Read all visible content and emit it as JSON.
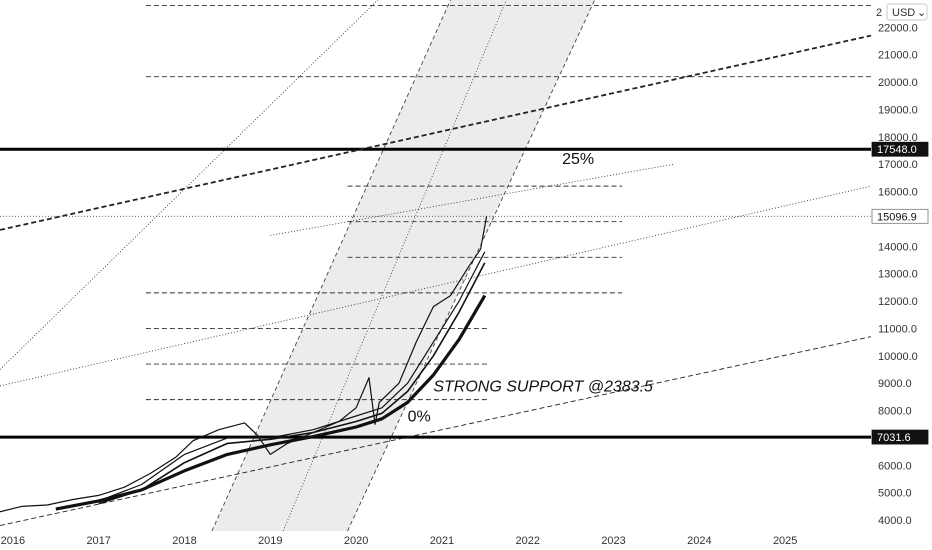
{
  "currency_label": "USD",
  "currency_menu_icon": "chevron-down-icon",
  "top_partial_tick": "2",
  "chart_data": {
    "type": "line",
    "price_axis": {
      "ticks": [
        "4000.0",
        "5000.0",
        "6000.0",
        "7000.0",
        "8000.0",
        "9000.0",
        "10000.0",
        "11000.0",
        "12000.0",
        "13000.0",
        "14000.0",
        "15000.0",
        "16000.0",
        "17000.0",
        "18000.0",
        "19000.0",
        "20000.0",
        "21000.0",
        "22000.0"
      ],
      "ylim": [
        3600,
        23000
      ]
    },
    "time_axis": {
      "ticks": [
        "2016",
        "2017",
        "2018",
        "2019",
        "2020",
        "2021",
        "2022",
        "2023",
        "2024",
        "2025"
      ],
      "xlim": [
        2015.85,
        2026.0
      ]
    },
    "price_badges": [
      {
        "label": "17548.0",
        "value": 17548.0,
        "style": "dark"
      },
      {
        "label": "15096.9",
        "value": 15096.9,
        "style": "light"
      },
      {
        "label": "7031.6",
        "value": 7031.6,
        "style": "dark"
      }
    ],
    "horizontal_levels": [
      {
        "value": 17548.0,
        "style": "thick"
      },
      {
        "value": 7031.6,
        "style": "thick"
      },
      {
        "value": 15096.9,
        "style": "dotted"
      }
    ],
    "fib_levels": [
      {
        "value": 22800,
        "x0": 2017.55,
        "x1": 2026.0
      },
      {
        "value": 20200,
        "x0": 2017.55,
        "x1": 2026.0
      },
      {
        "value": 16200,
        "x0": 2019.9,
        "x1": 2023.1
      },
      {
        "value": 14900,
        "x0": 2019.9,
        "x1": 2023.1
      },
      {
        "value": 13600,
        "x0": 2019.9,
        "x1": 2023.1
      },
      {
        "value": 12300,
        "x0": 2017.55,
        "x1": 2023.1
      },
      {
        "value": 11000,
        "x0": 2017.55,
        "x1": 2021.55
      },
      {
        "value": 9700,
        "x0": 2017.55,
        "x1": 2021.55
      },
      {
        "value": 8400,
        "x0": 2017.55,
        "x1": 2021.55
      }
    ],
    "trend_lines": [
      {
        "style": "dotted",
        "points": [
          [
            2015.85,
            9500
          ],
          [
            2020.35,
            23300
          ]
        ]
      },
      {
        "style": "dashed-bold",
        "points": [
          [
            2015.85,
            14600
          ],
          [
            2026.0,
            21700
          ]
        ]
      },
      {
        "style": "dotted",
        "points": [
          [
            2019.0,
            14400
          ],
          [
            2023.7,
            17000
          ]
        ]
      },
      {
        "style": "dotted",
        "points": [
          [
            2015.85,
            8900
          ],
          [
            2026.0,
            16200
          ]
        ]
      },
      {
        "style": "dashed",
        "points": [
          [
            2015.85,
            3800
          ],
          [
            2026.0,
            10700
          ]
        ]
      }
    ],
    "channel": {
      "fill": "#ececec",
      "left_edge": [
        [
          2018.32,
          3600
        ],
        [
          2021.1,
          23000
        ]
      ],
      "mid_line": [
        [
          2019.15,
          3600
        ],
        [
          2021.75,
          23000
        ]
      ],
      "right_edge": [
        [
          2019.9,
          3600
        ],
        [
          2022.78,
          23000
        ]
      ]
    },
    "series": [
      {
        "values": [
          [
            2015.85,
            4300
          ],
          [
            2016.1,
            4500
          ],
          [
            2016.4,
            4550
          ],
          [
            2016.7,
            4750
          ],
          [
            2017.0,
            4900
          ],
          [
            2017.3,
            5200
          ],
          [
            2017.6,
            5700
          ],
          [
            2017.9,
            6300
          ],
          [
            2018.1,
            6900
          ],
          [
            2018.4,
            7300
          ],
          [
            2018.7,
            7550
          ],
          [
            2018.85,
            7100
          ],
          [
            2019.0,
            6400
          ],
          [
            2019.2,
            6800
          ],
          [
            2019.5,
            7200
          ],
          [
            2019.8,
            7600
          ],
          [
            2020.0,
            8100
          ],
          [
            2020.15,
            9200
          ],
          [
            2020.22,
            7500
          ],
          [
            2020.27,
            8300
          ],
          [
            2020.5,
            9000
          ],
          [
            2020.7,
            10500
          ],
          [
            2020.9,
            11800
          ],
          [
            2021.1,
            12200
          ],
          [
            2021.3,
            13200
          ],
          [
            2021.45,
            13900
          ],
          [
            2021.52,
            15097
          ]
        ]
      },
      {
        "values": [
          [
            2017.0,
            4700
          ],
          [
            2017.5,
            5300
          ],
          [
            2018.0,
            6400
          ],
          [
            2018.5,
            7000
          ],
          [
            2019.0,
            7000
          ],
          [
            2019.5,
            7300
          ],
          [
            2020.0,
            7800
          ],
          [
            2020.3,
            8100
          ],
          [
            2020.6,
            9000
          ],
          [
            2020.9,
            10500
          ],
          [
            2021.2,
            12000
          ],
          [
            2021.5,
            13800
          ]
        ]
      },
      {
        "values": [
          [
            2017.0,
            4600
          ],
          [
            2017.5,
            5100
          ],
          [
            2018.0,
            6100
          ],
          [
            2018.5,
            6800
          ],
          [
            2019.0,
            6950
          ],
          [
            2019.5,
            7200
          ],
          [
            2020.0,
            7600
          ],
          [
            2020.3,
            7900
          ],
          [
            2020.6,
            8700
          ],
          [
            2020.9,
            10000
          ],
          [
            2021.2,
            11600
          ],
          [
            2021.5,
            13400
          ]
        ]
      },
      {
        "values": [
          [
            2016.5,
            4400
          ],
          [
            2017.0,
            4700
          ],
          [
            2017.5,
            5100
          ],
          [
            2018.0,
            5800
          ],
          [
            2018.5,
            6400
          ],
          [
            2019.0,
            6750
          ],
          [
            2019.5,
            7050
          ],
          [
            2020.0,
            7400
          ],
          [
            2020.3,
            7700
          ],
          [
            2020.6,
            8300
          ],
          [
            2020.9,
            9300
          ],
          [
            2021.2,
            10600
          ],
          [
            2021.5,
            12200
          ]
        ]
      }
    ],
    "annotations": [
      {
        "text": "25%",
        "x": 2022.4,
        "y": 17000,
        "style": "normal"
      },
      {
        "text": "0%",
        "x": 2020.6,
        "y": 7600,
        "style": "normal"
      },
      {
        "text": "STRONG SUPPORT @2383.5",
        "x": 2020.9,
        "y": 8700,
        "style": "italic"
      }
    ]
  }
}
